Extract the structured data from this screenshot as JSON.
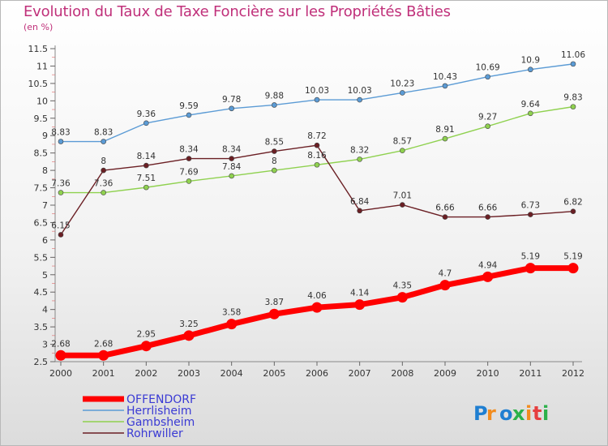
{
  "title": "Evolution du Taux de Taxe Foncière sur les Propriétés Bâties",
  "unit_label": "(en %)",
  "brand": {
    "text": "Proxiti"
  },
  "chart_data": {
    "type": "line",
    "x": [
      2000,
      2001,
      2002,
      2003,
      2004,
      2005,
      2006,
      2007,
      2008,
      2009,
      2010,
      2011,
      2012
    ],
    "ylim": [
      2.5,
      11.5
    ],
    "yticks": [
      2.5,
      3,
      3.5,
      4,
      4.5,
      5,
      5.5,
      6,
      6.5,
      7,
      7.5,
      8,
      8.5,
      9,
      9.5,
      10,
      10.5,
      11,
      11.5
    ],
    "grid": false,
    "legend_position": "bottom-left",
    "series": [
      {
        "name": "OFFENDORF",
        "color": "#ff0000",
        "bold": true,
        "values": [
          2.68,
          2.68,
          2.95,
          3.25,
          3.58,
          3.87,
          4.06,
          4.14,
          4.35,
          4.7,
          4.94,
          5.19,
          5.19
        ],
        "labels": [
          "2.68",
          "2.68",
          "2.95",
          "3.25",
          "3.58",
          "3.87",
          "4.06",
          "4.14",
          "4.35",
          "4.7",
          "4.94",
          "5.19",
          "5.19"
        ]
      },
      {
        "name": "Herrlisheim",
        "color": "#5b9bd5",
        "bold": false,
        "values": [
          8.83,
          8.83,
          9.36,
          9.59,
          9.78,
          9.88,
          10.03,
          10.03,
          10.23,
          10.43,
          10.69,
          10.9,
          11.06
        ],
        "labels": [
          "8.83",
          "8.83",
          "9.36",
          "9.59",
          "9.78",
          "9.88",
          "10.03",
          "10.03",
          "10.23",
          "10.43",
          "10.69",
          "10.9",
          "11.06"
        ]
      },
      {
        "name": "Gambsheim",
        "color": "#8fd14f",
        "bold": false,
        "values": [
          7.36,
          7.36,
          7.51,
          7.69,
          7.84,
          8,
          8.16,
          8.32,
          8.57,
          8.91,
          9.27,
          9.64,
          9.83
        ],
        "labels": [
          "7.36",
          "7.36",
          "7.51",
          "7.69",
          "7.84",
          "8",
          "8.16",
          "8.32",
          "8.57",
          "8.91",
          "9.27",
          "9.64",
          "9.83"
        ]
      },
      {
        "name": "Rohrwiller",
        "color": "#6b1f24",
        "bold": false,
        "values": [
          6.15,
          8,
          8.14,
          8.34,
          8.34,
          8.55,
          8.72,
          6.84,
          7.01,
          6.66,
          6.66,
          6.73,
          6.82
        ],
        "labels": [
          "6.15",
          "8",
          "8.14",
          "8.34",
          "8.34",
          "8.55",
          "8.72",
          "6.84",
          "7.01",
          "6.66",
          "6.66",
          "6.73",
          "6.82"
        ]
      }
    ]
  }
}
